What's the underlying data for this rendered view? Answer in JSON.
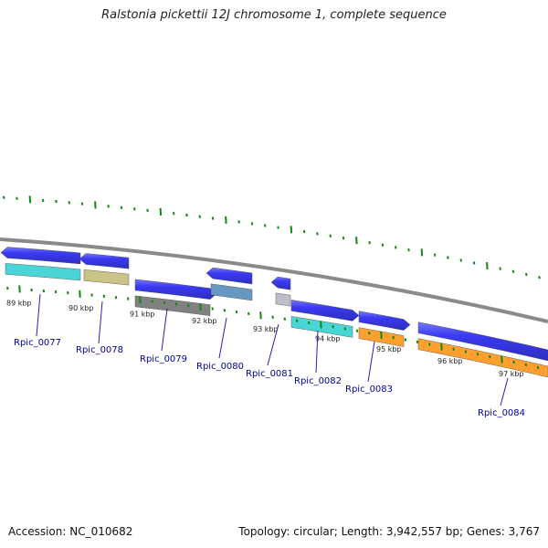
{
  "title": "Ralstonia pickettii 12J chromosome 1, complete sequence",
  "accession": {
    "label": "Accession:",
    "value": "NC_010682"
  },
  "topology": {
    "label": "Topology:",
    "value": "circular"
  },
  "length": {
    "label": "Length:",
    "value": "3,942,557 bp"
  },
  "genes": {
    "label": "Genes:",
    "value": "3,767"
  },
  "colors": {
    "backbone": "#888888",
    "gene_arrow": "#0000ee",
    "tick": "#118811",
    "label": "#000099",
    "leader": "#2222bb"
  },
  "kbp_ticks": [
    "89 kbp",
    "90 kbp",
    "91 kbp",
    "92 kbp",
    "93 kbp",
    "94 kbp",
    "95 kbp",
    "96 kbp",
    "97 kbp"
  ],
  "genes_list": [
    {
      "name": "Rpic_0077",
      "strand": "-",
      "feature_color": "#22cccc"
    },
    {
      "name": "Rpic_0078",
      "strand": "-",
      "feature_color": "#bdb76b"
    },
    {
      "name": "Rpic_0079",
      "strand": "+",
      "feature_color": "#666666"
    },
    {
      "name": "Rpic_0080",
      "strand": "-",
      "feature_color": "#4682b4"
    },
    {
      "name": "Rpic_0081",
      "strand": "-",
      "feature_color": "#b0b0c0"
    },
    {
      "name": "Rpic_0082",
      "strand": "+",
      "feature_color": "#22cccc"
    },
    {
      "name": "Rpic_0083",
      "strand": "+",
      "feature_color": "#ff8c00"
    },
    {
      "name": "Rpic_0084",
      "strand": "+",
      "feature_color": "#ff8c00"
    }
  ]
}
